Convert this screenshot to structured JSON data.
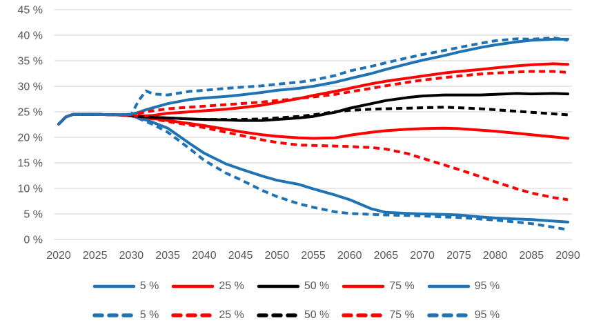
{
  "chart_data": {
    "type": "line",
    "title": "",
    "xlabel": "",
    "ylabel": "",
    "background": "#FFFFFF",
    "gridline_color": "#D9D9D9",
    "axis_text_color": "#595959",
    "grid": "horizontal-only",
    "legend_position": "bottom-two-rows",
    "ylim": [
      0,
      45
    ],
    "y_step": 5,
    "y_tick_labels": [
      "0 %",
      "5 %",
      "10 %",
      "15 %",
      "20 %",
      "25 %",
      "30 %",
      "35 %",
      "40 %",
      "45 %"
    ],
    "x_tick_labels": [
      "2020",
      "2025",
      "2030",
      "2035",
      "2040",
      "2045",
      "2050",
      "2055",
      "2060",
      "2065",
      "2070",
      "2075",
      "2080",
      "2085",
      "2090"
    ],
    "x_tick_years": [
      2020,
      2025,
      2030,
      2035,
      2040,
      2045,
      2050,
      2055,
      2060,
      2065,
      2070,
      2075,
      2080,
      2085,
      2090
    ],
    "xlim": [
      2020,
      2090
    ],
    "palette": {
      "blue": "#1F73B4",
      "red": "#FF0000",
      "black": "#000000"
    },
    "x": [
      2020,
      2021,
      2022,
      2025,
      2028,
      2030,
      2031,
      2032,
      2033,
      2035,
      2038,
      2040,
      2043,
      2045,
      2048,
      2050,
      2053,
      2055,
      2058,
      2060,
      2063,
      2065,
      2068,
      2070,
      2073,
      2075,
      2078,
      2080,
      2083,
      2085,
      2088,
      2090
    ],
    "series": [
      {
        "name": "5 %",
        "style": "solid",
        "color": "blue",
        "values": [
          22.6,
          24.0,
          24.5,
          24.5,
          24.4,
          24.2,
          23.8,
          23.4,
          22.9,
          21.8,
          18.8,
          16.9,
          14.8,
          13.8,
          12.4,
          11.6,
          10.8,
          9.9,
          8.7,
          7.8,
          6.0,
          5.3,
          5.1,
          5.0,
          4.9,
          4.8,
          4.4,
          4.2,
          4.0,
          3.9,
          3.6,
          3.4
        ]
      },
      {
        "name": "25 %",
        "style": "solid",
        "color": "red",
        "values": [
          22.6,
          24.0,
          24.5,
          24.5,
          24.4,
          24.2,
          24.1,
          23.9,
          23.7,
          23.3,
          22.7,
          22.3,
          21.6,
          21.1,
          20.5,
          20.2,
          19.9,
          19.8,
          19.9,
          20.4,
          21.0,
          21.3,
          21.6,
          21.7,
          21.8,
          21.7,
          21.4,
          21.2,
          20.8,
          20.5,
          20.1,
          19.8
        ]
      },
      {
        "name": "50 %",
        "style": "solid",
        "color": "black",
        "values": [
          22.6,
          24.0,
          24.5,
          24.5,
          24.4,
          24.3,
          24.1,
          24.0,
          23.9,
          23.8,
          23.6,
          23.5,
          23.4,
          23.3,
          23.3,
          23.5,
          23.8,
          24.1,
          24.9,
          25.7,
          26.6,
          27.2,
          27.8,
          28.1,
          28.3,
          28.3,
          28.3,
          28.4,
          28.6,
          28.5,
          28.6,
          28.5
        ]
      },
      {
        "name": "75 %",
        "style": "solid",
        "color": "red",
        "values": [
          22.6,
          24.0,
          24.5,
          24.5,
          24.4,
          24.3,
          24.2,
          24.2,
          24.3,
          24.7,
          25.0,
          25.2,
          25.5,
          25.8,
          26.3,
          26.8,
          27.6,
          28.2,
          29.0,
          29.6,
          30.5,
          31.0,
          31.6,
          32.0,
          32.6,
          32.9,
          33.3,
          33.6,
          34.0,
          34.2,
          34.4,
          34.3
        ]
      },
      {
        "name": "95 %",
        "style": "solid",
        "color": "blue",
        "values": [
          22.6,
          24.0,
          24.5,
          24.5,
          24.4,
          24.5,
          24.9,
          25.4,
          25.8,
          26.6,
          27.4,
          27.7,
          28.0,
          28.3,
          28.8,
          29.2,
          29.6,
          30.0,
          30.8,
          31.5,
          32.5,
          33.3,
          34.4,
          35.1,
          36.0,
          36.7,
          37.6,
          38.1,
          38.7,
          39.0,
          39.2,
          39.2
        ]
      },
      {
        "name": "5 %",
        "style": "dashed",
        "color": "blue",
        "values": [
          22.6,
          24.0,
          24.5,
          24.5,
          24.4,
          24.2,
          23.7,
          23.1,
          22.5,
          21.0,
          17.8,
          15.5,
          13.0,
          11.7,
          9.6,
          8.4,
          7.0,
          6.3,
          5.4,
          5.1,
          4.9,
          4.8,
          4.7,
          4.6,
          4.4,
          4.3,
          4.0,
          3.8,
          3.4,
          3.1,
          2.4,
          1.9
        ]
      },
      {
        "name": "25 %",
        "style": "dashed",
        "color": "red",
        "values": [
          22.6,
          24.0,
          24.5,
          24.5,
          24.4,
          24.2,
          24.0,
          23.8,
          23.6,
          23.1,
          22.4,
          21.9,
          21.0,
          20.4,
          19.5,
          19.0,
          18.5,
          18.4,
          18.3,
          18.2,
          18.0,
          17.7,
          16.8,
          15.9,
          14.6,
          13.7,
          12.3,
          11.3,
          9.9,
          9.1,
          8.2,
          7.8
        ]
      },
      {
        "name": "50 %",
        "style": "dashed",
        "color": "black",
        "values": [
          22.6,
          24.0,
          24.5,
          24.5,
          24.4,
          24.3,
          24.1,
          24.0,
          23.9,
          23.8,
          23.6,
          23.5,
          23.5,
          23.5,
          23.6,
          23.8,
          24.1,
          24.4,
          25.0,
          25.3,
          25.5,
          25.6,
          25.7,
          25.8,
          25.9,
          25.8,
          25.6,
          25.4,
          25.1,
          24.9,
          24.6,
          24.4
        ]
      },
      {
        "name": "75 %",
        "style": "dashed",
        "color": "red",
        "values": [
          22.6,
          24.0,
          24.5,
          24.5,
          24.4,
          24.4,
          24.7,
          25.0,
          25.2,
          25.6,
          25.9,
          26.1,
          26.4,
          26.6,
          26.9,
          27.2,
          27.6,
          27.9,
          28.4,
          28.9,
          29.6,
          30.1,
          30.8,
          31.2,
          31.7,
          32.0,
          32.4,
          32.6,
          32.8,
          32.9,
          32.9,
          32.7
        ]
      },
      {
        "name": "95 %",
        "style": "dashed",
        "color": "blue",
        "values": [
          22.6,
          24.0,
          24.5,
          24.5,
          24.4,
          24.5,
          27.2,
          29.1,
          28.5,
          28.3,
          29.0,
          29.2,
          29.6,
          29.8,
          30.1,
          30.4,
          30.8,
          31.2,
          32.1,
          33.0,
          33.9,
          34.6,
          35.6,
          36.2,
          37.0,
          37.6,
          38.4,
          38.9,
          39.3,
          39.2,
          39.5,
          39.0
        ]
      }
    ],
    "legend_rows": [
      {
        "style": "solid",
        "labels": [
          "5 %",
          "25 %",
          "50 %",
          "75 %",
          "95 %"
        ],
        "colors": [
          "blue",
          "red",
          "black",
          "red",
          "blue"
        ]
      },
      {
        "style": "dashed",
        "labels": [
          "5 %",
          "25 %",
          "50 %",
          "75 %",
          "95 %"
        ],
        "colors": [
          "blue",
          "red",
          "black",
          "red",
          "blue"
        ]
      }
    ]
  }
}
